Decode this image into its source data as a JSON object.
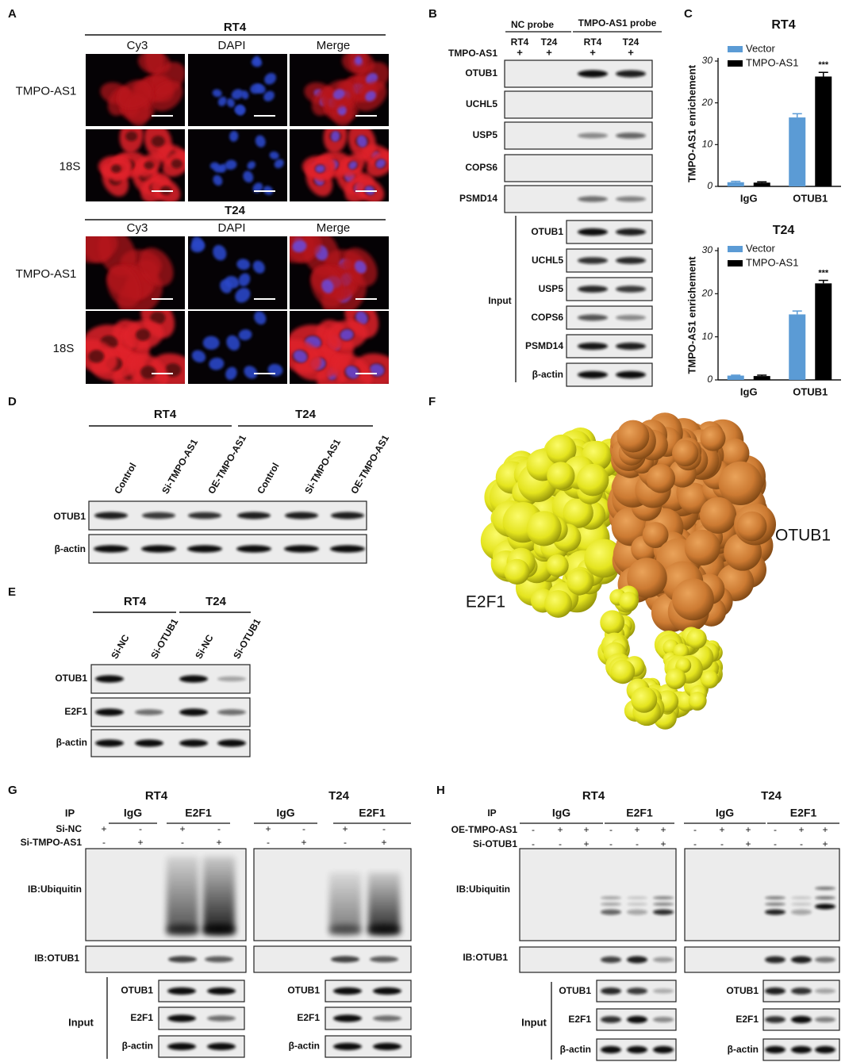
{
  "figure": {
    "panel_labels": [
      "A",
      "B",
      "C",
      "D",
      "E",
      "F",
      "G",
      "H"
    ],
    "a": {
      "groups": [
        {
          "title": "RT4",
          "channels": [
            "Cy3",
            "DAPI",
            "Merge"
          ],
          "rows": [
            "TMPO-AS1",
            "18S"
          ]
        },
        {
          "title": "T24",
          "channels": [
            "Cy3",
            "DAPI",
            "Merge"
          ],
          "rows": [
            "TMPO-AS1",
            "18S"
          ]
        }
      ]
    },
    "b": {
      "probes": [
        "NC probe",
        "TMPO-AS1 probe"
      ],
      "lanes": [
        "RT4",
        "T24",
        "RT4",
        "T24"
      ],
      "row_label": "TMPO-AS1",
      "signs": [
        "+",
        "+",
        "+",
        "+"
      ],
      "pulldown": [
        "OTUB1",
        "UCHL5",
        "USP5",
        "COPS6",
        "PSMD14"
      ],
      "input_label": "Input",
      "input": [
        "OTUB1",
        "UCHL5",
        "USP5",
        "COPS6",
        "PSMD14",
        "β-actin"
      ]
    },
    "d": {
      "groups": [
        "RT4",
        "T24"
      ],
      "lanes": [
        "Control",
        "Si-TMPO-AS1",
        "OE-TMPO-AS1",
        "Control",
        "Si-TMPO-AS1",
        "OE-TMPO-AS1"
      ],
      "blots": [
        "OTUB1",
        "β-actin"
      ]
    },
    "e": {
      "groups": [
        "RT4",
        "T24"
      ],
      "lanes": [
        "Si-NC",
        "Si-OTUB1",
        "Si-NC",
        "Si-OTUB1"
      ],
      "blots": [
        "OTUB1",
        "E2F1",
        "β-actin"
      ]
    },
    "f": {
      "labels": [
        "E2F1",
        "OTUB1"
      ]
    },
    "g": {
      "groups": [
        "RT4",
        "T24"
      ],
      "ip_label": "IP",
      "ip": [
        "IgG",
        "E2F1",
        "IgG",
        "E2F1"
      ],
      "conditions": [
        {
          "name": "Si-NC",
          "signs": [
            "+",
            "-",
            "+",
            "-",
            "+",
            "-",
            "+",
            "-"
          ]
        },
        {
          "name": "Si-TMPO-AS1",
          "signs": [
            "-",
            "+",
            "-",
            "+",
            "-",
            "+",
            "-",
            "+"
          ]
        }
      ],
      "ib": [
        "IB:Ubiquitin",
        "IB:OTUB1"
      ],
      "input_label": "Input",
      "input": [
        "OTUB1",
        "E2F1",
        "β-actin"
      ]
    },
    "h": {
      "groups": [
        "RT4",
        "T24"
      ],
      "ip_label": "IP",
      "ip": [
        "IgG",
        "E2F1",
        "IgG",
        "E2F1"
      ],
      "conditions": [
        {
          "name": "OE-TMPO-AS1",
          "signs": [
            "-",
            "+",
            "+",
            "-",
            "+",
            "+",
            "-",
            "+",
            "+",
            "-",
            "+",
            "+"
          ]
        },
        {
          "name": "Si-OTUB1",
          "signs": [
            "-",
            "-",
            "+",
            "-",
            "-",
            "+",
            "-",
            "-",
            "+",
            "-",
            "-",
            "+"
          ]
        }
      ],
      "ib": [
        "IB:Ubiquitin",
        "IB:OTUB1"
      ],
      "input_label": "Input",
      "input": [
        "OTUB1",
        "E2F1",
        "β-actin"
      ]
    }
  },
  "chart_data": [
    {
      "type": "bar",
      "title": "RT4",
      "ylabel": "TMPO-AS1 enrichement",
      "categories": [
        "IgG",
        "OTUB1"
      ],
      "series": [
        {
          "name": "Vector",
          "color": "#5b9bd5",
          "values": [
            1.0,
            16.5
          ],
          "errors": [
            0.2,
            0.9
          ]
        },
        {
          "name": "TMPO-AS1",
          "color": "#000000",
          "values": [
            0.9,
            26.3
          ],
          "errors": [
            0.2,
            1.0
          ]
        }
      ],
      "ylim": [
        0,
        30
      ],
      "yticks": [
        0,
        10,
        20,
        30
      ],
      "annotations": [
        "***"
      ]
    },
    {
      "type": "bar",
      "title": "T24",
      "ylabel": "TMPO-AS1 enrichement",
      "categories": [
        "IgG",
        "OTUB1"
      ],
      "series": [
        {
          "name": "Vector",
          "color": "#5b9bd5",
          "values": [
            1.0,
            15.2
          ],
          "errors": [
            0.1,
            0.8
          ]
        },
        {
          "name": "TMPO-AS1",
          "color": "#000000",
          "values": [
            0.9,
            22.4
          ],
          "errors": [
            0.2,
            0.7
          ]
        }
      ],
      "ylim": [
        0,
        30
      ],
      "yticks": [
        0,
        10,
        20,
        30
      ],
      "annotations": [
        "***"
      ]
    }
  ]
}
